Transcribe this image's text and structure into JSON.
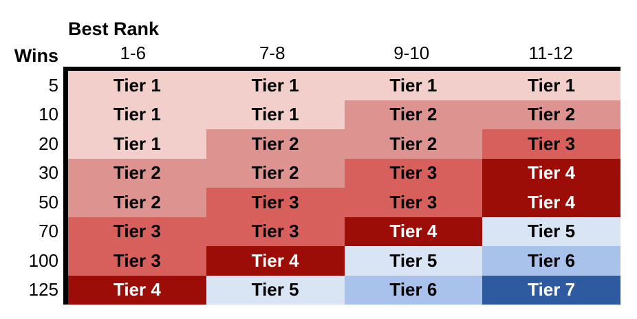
{
  "header": {
    "group_label": "Best Rank",
    "row_axis_label": "Wins"
  },
  "chart_data": {
    "type": "heatmap",
    "title": "Best Rank",
    "row_axis_label": "Wins",
    "columns": [
      "1-6",
      "7-8",
      "9-10",
      "11-12"
    ],
    "rows": [
      "5",
      "10",
      "20",
      "30",
      "50",
      "70",
      "100",
      "125"
    ],
    "values": [
      [
        "Tier 1",
        "Tier 1",
        "Tier 1",
        "Tier 1"
      ],
      [
        "Tier 1",
        "Tier 1",
        "Tier 2",
        "Tier 2"
      ],
      [
        "Tier 1",
        "Tier 2",
        "Tier 2",
        "Tier 3"
      ],
      [
        "Tier 2",
        "Tier 2",
        "Tier 3",
        "Tier 4"
      ],
      [
        "Tier 2",
        "Tier 3",
        "Tier 3",
        "Tier 4"
      ],
      [
        "Tier 3",
        "Tier 3",
        "Tier 4",
        "Tier 5"
      ],
      [
        "Tier 3",
        "Tier 4",
        "Tier 5",
        "Tier 6"
      ],
      [
        "Tier 4",
        "Tier 5",
        "Tier 6",
        "Tier 7"
      ]
    ],
    "tier_styles": {
      "Tier 1": {
        "bg": "#F2CFCA",
        "text": "#000000"
      },
      "Tier 2": {
        "bg": "#DD9490",
        "text": "#000000"
      },
      "Tier 3": {
        "bg": "#D75F5C",
        "text": "#000000"
      },
      "Tier 4": {
        "bg": "#9C0D08",
        "text": "#FFFFFF"
      },
      "Tier 5": {
        "bg": "#D9E4F5",
        "text": "#000000"
      },
      "Tier 6": {
        "bg": "#A9C2EC",
        "text": "#000000"
      },
      "Tier 7": {
        "bg": "#2E5B9F",
        "text": "#FFFFFF"
      }
    },
    "grid_border_color": "#000000",
    "background": "#FFFFFF",
    "legend": "none"
  }
}
